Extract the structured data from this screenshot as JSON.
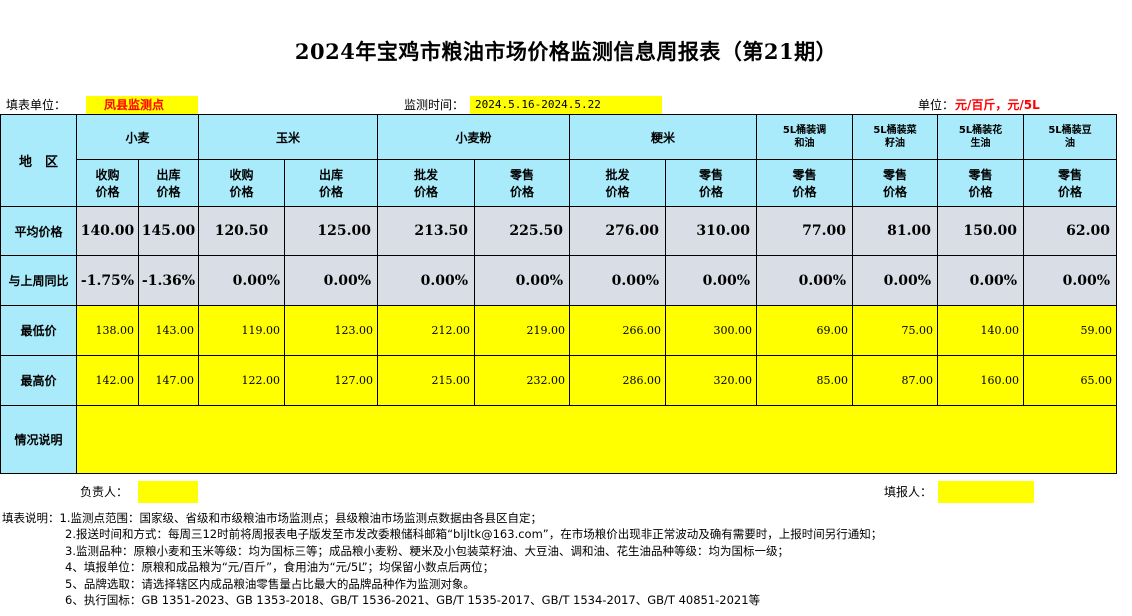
{
  "title": "2024年宝鸡市粮油市场价格监测信息周报表（第21期）",
  "header": {
    "unit_label": "填表单位：",
    "unit_value": "凤县监测点",
    "period_label": "监测时间：",
    "period_value": "2024.5.16-2024.5.22",
    "price_unit_label": "单位：",
    "price_unit_value": "元/百斤，元/5L"
  },
  "table": {
    "region_label": "地　区",
    "groups": [
      {
        "name": "小麦",
        "sub": [
          "收购价格",
          "出库价格"
        ]
      },
      {
        "name": "玉米",
        "sub": [
          "收购价格",
          "出库价格"
        ]
      },
      {
        "name": "小麦粉",
        "sub": [
          "批发价格",
          "零售价格"
        ]
      },
      {
        "name": "粳米",
        "sub": [
          "批发价格",
          "零售价格"
        ]
      },
      {
        "name": "5L桶装调和油",
        "sub": [
          "零售价格"
        ]
      },
      {
        "name": "5L桶装菜籽油",
        "sub": [
          "零售价格"
        ]
      },
      {
        "name": "5L桶装花生油",
        "sub": [
          "零售价格"
        ]
      },
      {
        "name": "5L桶装豆油",
        "sub": [
          "零售价格"
        ]
      }
    ],
    "rows": [
      {
        "label": "平均价格",
        "values": [
          "140.00",
          "145.00",
          "120.50",
          "125.00",
          "213.50",
          "225.50",
          "276.00",
          "310.00",
          "77.00",
          "81.00",
          "150.00",
          "62.00"
        ]
      },
      {
        "label": "与上周同比",
        "values": [
          "-1.75%",
          "-1.36%",
          "0.00%",
          "0.00%",
          "0.00%",
          "0.00%",
          "0.00%",
          "0.00%",
          "0.00%",
          "0.00%",
          "0.00%",
          "0.00%"
        ]
      },
      {
        "label": "最低价",
        "values": [
          "138.00",
          "143.00",
          "119.00",
          "123.00",
          "212.00",
          "219.00",
          "266.00",
          "300.00",
          "69.00",
          "75.00",
          "140.00",
          "59.00"
        ]
      },
      {
        "label": "最高价",
        "values": [
          "142.00",
          "147.00",
          "122.00",
          "127.00",
          "215.00",
          "232.00",
          "286.00",
          "320.00",
          "85.00",
          "87.00",
          "160.00",
          "65.00"
        ]
      }
    ],
    "situation_label": "情况说明",
    "situation_value": ""
  },
  "signatures": {
    "responsible_label": "负责人：",
    "responsible_value": "",
    "filler_label": "填报人：",
    "filler_value": ""
  },
  "notes": [
    "填表说明：1.监测点范围：国家级、省级和市级粮油市场监测点；县级粮油市场监测点数据由各县区自定；",
    "2.报送时间和方式：每周三12时前将周报表电子版发至市发改委粮储科邮箱“bljltk@163.com”，在市场粮价出现非正常波动及确有需要时，上报时间另行通知；",
    "3.监测品种：原粮小麦和玉米等级：均为国标三等；成品粮小麦粉、粳米及小包装菜籽油、大豆油、调和油、花生油品种等级：均为国标一级；",
    "4、填报单位：原粮和成品粮为“元/百斤”，食用油为“元/5L”；均保留小数点后两位；",
    "5、品牌选取：请选择辖区内成品粮油零售量占比最大的品牌品种作为监测对象。",
    "6、执行国标：GB 1351-2023、GB 1353-2018、GB/T 1536-2021、GB/T 1535-2017、GB/T 1534-2017、GB/T 40851-2021等"
  ],
  "colors": {
    "header_blue": "#a9ebfa",
    "highlight_yellow": "#ffff00",
    "row_gray": "#d9dde6",
    "unit_red": "#ff0000"
  }
}
